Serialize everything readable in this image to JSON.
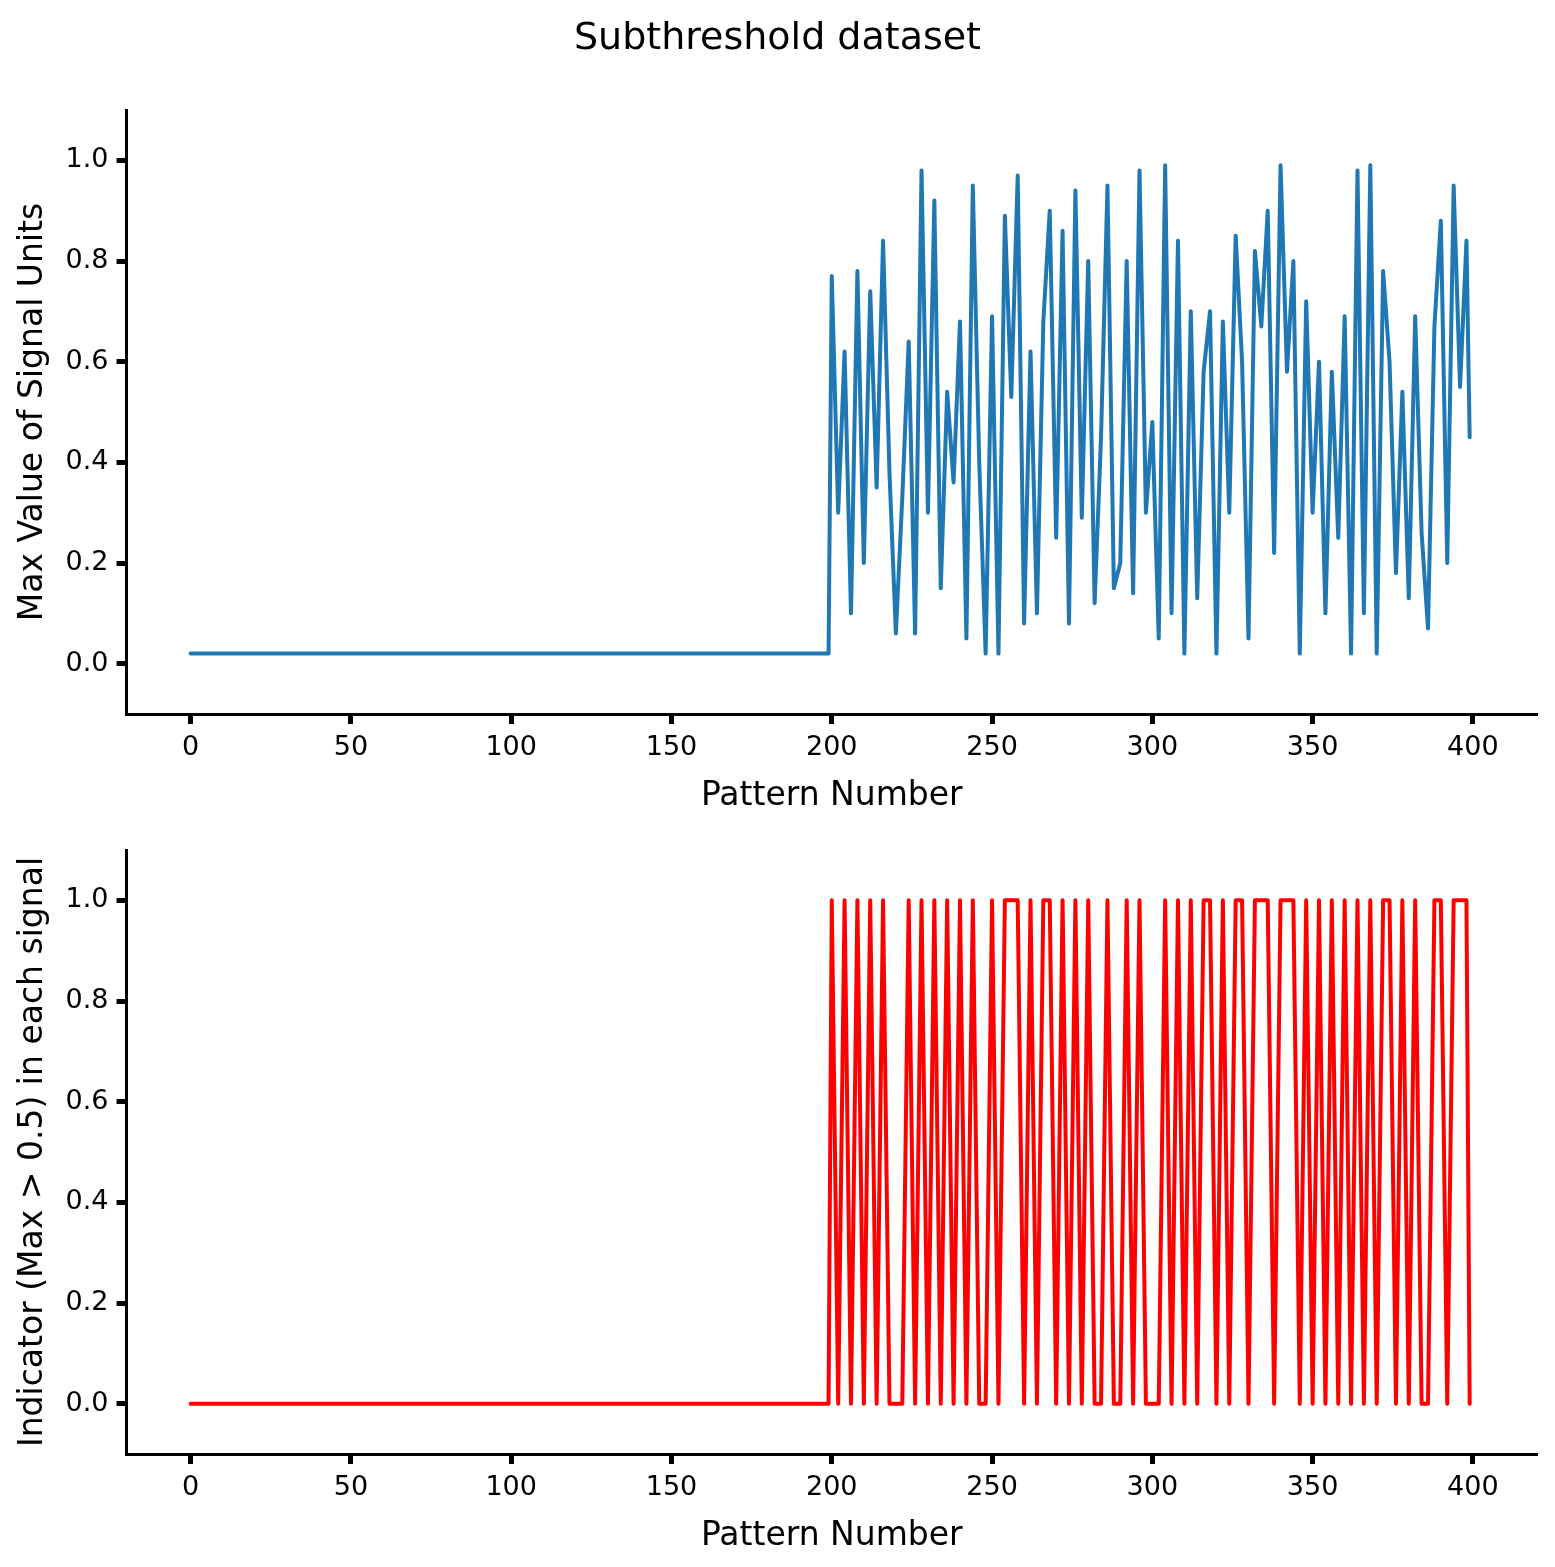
{
  "chart_data": [
    {
      "type": "line",
      "title": "Subthreshold dataset",
      "xlabel": "Pattern Number",
      "ylabel": "Max Value of Signal Units",
      "xlim": [
        -20,
        420
      ],
      "xticks": [
        0,
        50,
        100,
        150,
        200,
        250,
        300,
        350,
        400
      ],
      "ylim": [
        -0.1,
        1.1
      ],
      "yticks": [
        {
          "value": 0,
          "label": "0.0"
        },
        {
          "value": 0.2,
          "label": "0.2"
        },
        {
          "value": 0.4,
          "label": "0.4"
        },
        {
          "value": 0.6,
          "label": "0.6"
        },
        {
          "value": 0.8,
          "label": "0.8"
        },
        {
          "value": 1,
          "label": "1.0"
        }
      ],
      "grid": false,
      "legend": false,
      "x": [
        0,
        25,
        50,
        75,
        100,
        125,
        150,
        175,
        199,
        200,
        202,
        204,
        206,
        208,
        210,
        212,
        214,
        216,
        218,
        220,
        222,
        224,
        226,
        228,
        230,
        232,
        234,
        236,
        238,
        240,
        242,
        244,
        246,
        248,
        250,
        252,
        254,
        256,
        258,
        260,
        262,
        264,
        266,
        268,
        270,
        272,
        274,
        276,
        278,
        280,
        282,
        284,
        286,
        288,
        290,
        292,
        294,
        296,
        298,
        300,
        302,
        304,
        306,
        308,
        310,
        312,
        314,
        316,
        318,
        320,
        322,
        324,
        326,
        328,
        330,
        332,
        334,
        336,
        338,
        340,
        342,
        344,
        346,
        348,
        350,
        352,
        354,
        356,
        358,
        360,
        362,
        364,
        366,
        368,
        370,
        372,
        374,
        376,
        378,
        380,
        382,
        384,
        386,
        388,
        390,
        392,
        394,
        396,
        398,
        399
      ],
      "series": [
        {
          "color": "#1f77b4",
          "values": [
            0.02,
            0.02,
            0.02,
            0.02,
            0.02,
            0.02,
            0.02,
            0.02,
            0.02,
            0.77,
            0.3,
            0.62,
            0.1,
            0.78,
            0.2,
            0.74,
            0.35,
            0.84,
            0.38,
            0.06,
            0.33,
            0.64,
            0.06,
            0.98,
            0.3,
            0.92,
            0.15,
            0.54,
            0.36,
            0.68,
            0.05,
            0.95,
            0.4,
            0.02,
            0.69,
            0.02,
            0.89,
            0.53,
            0.97,
            0.08,
            0.62,
            0.1,
            0.68,
            0.9,
            0.25,
            0.86,
            0.08,
            0.94,
            0.29,
            0.8,
            0.12,
            0.45,
            0.95,
            0.15,
            0.2,
            0.8,
            0.14,
            0.98,
            0.3,
            0.48,
            0.05,
            0.99,
            0.1,
            0.84,
            0.02,
            0.7,
            0.13,
            0.58,
            0.7,
            0.02,
            0.68,
            0.3,
            0.85,
            0.6,
            0.05,
            0.82,
            0.67,
            0.9,
            0.22,
            0.99,
            0.58,
            0.8,
            0.02,
            0.72,
            0.3,
            0.6,
            0.1,
            0.58,
            0.25,
            0.69,
            0.02,
            0.98,
            0.1,
            0.99,
            0.02,
            0.78,
            0.6,
            0.18,
            0.54,
            0.13,
            0.69,
            0.26,
            0.07,
            0.67,
            0.88,
            0.2,
            0.95,
            0.55,
            0.84,
            0.45
          ]
        }
      ]
    },
    {
      "type": "line",
      "xlabel": "Pattern Number",
      "ylabel": "Indicator (Max > 0.5) in each signal",
      "xlim": [
        -20,
        420
      ],
      "xticks": [
        0,
        50,
        100,
        150,
        200,
        250,
        300,
        350,
        400
      ],
      "ylim": [
        -0.1,
        1.1
      ],
      "yticks": [
        {
          "value": 0,
          "label": "0.0"
        },
        {
          "value": 0.2,
          "label": "0.2"
        },
        {
          "value": 0.4,
          "label": "0.4"
        },
        {
          "value": 0.6,
          "label": "0.6"
        },
        {
          "value": 0.8,
          "label": "0.8"
        },
        {
          "value": 1,
          "label": "1.0"
        }
      ],
      "grid": false,
      "legend": false,
      "x": [
        0,
        25,
        50,
        75,
        100,
        125,
        150,
        175,
        199,
        200,
        202,
        204,
        206,
        208,
        210,
        212,
        214,
        216,
        218,
        220,
        222,
        224,
        226,
        228,
        230,
        232,
        234,
        236,
        238,
        240,
        242,
        244,
        246,
        248,
        250,
        252,
        254,
        256,
        258,
        260,
        262,
        264,
        266,
        268,
        270,
        272,
        274,
        276,
        278,
        280,
        282,
        284,
        286,
        288,
        290,
        292,
        294,
        296,
        298,
        300,
        302,
        304,
        306,
        308,
        310,
        312,
        314,
        316,
        318,
        320,
        322,
        324,
        326,
        328,
        330,
        332,
        334,
        336,
        338,
        340,
        342,
        344,
        346,
        348,
        350,
        352,
        354,
        356,
        358,
        360,
        362,
        364,
        366,
        368,
        370,
        372,
        374,
        376,
        378,
        380,
        382,
        384,
        386,
        388,
        390,
        392,
        394,
        396,
        398,
        399
      ],
      "series": [
        {
          "color": "#ff0000",
          "values": [
            0,
            0,
            0,
            0,
            0,
            0,
            0,
            0,
            0,
            1,
            0,
            1,
            0,
            1,
            0,
            1,
            0,
            1,
            0,
            0,
            0,
            1,
            0,
            1,
            0,
            1,
            0,
            1,
            0,
            1,
            0,
            1,
            0,
            0,
            1,
            0,
            1,
            1,
            1,
            0,
            1,
            0,
            1,
            1,
            0,
            1,
            0,
            1,
            0,
            1,
            0,
            0,
            1,
            0,
            0,
            1,
            0,
            1,
            0,
            0,
            0,
            1,
            0,
            1,
            0,
            1,
            0,
            1,
            1,
            0,
            1,
            0,
            1,
            1,
            0,
            1,
            1,
            1,
            0,
            1,
            1,
            1,
            0,
            1,
            0,
            1,
            0,
            1,
            0,
            1,
            0,
            1,
            0,
            1,
            0,
            1,
            1,
            0,
            1,
            0,
            1,
            0,
            0,
            1,
            1,
            0,
            1,
            1,
            1,
            0
          ]
        }
      ]
    }
  ]
}
